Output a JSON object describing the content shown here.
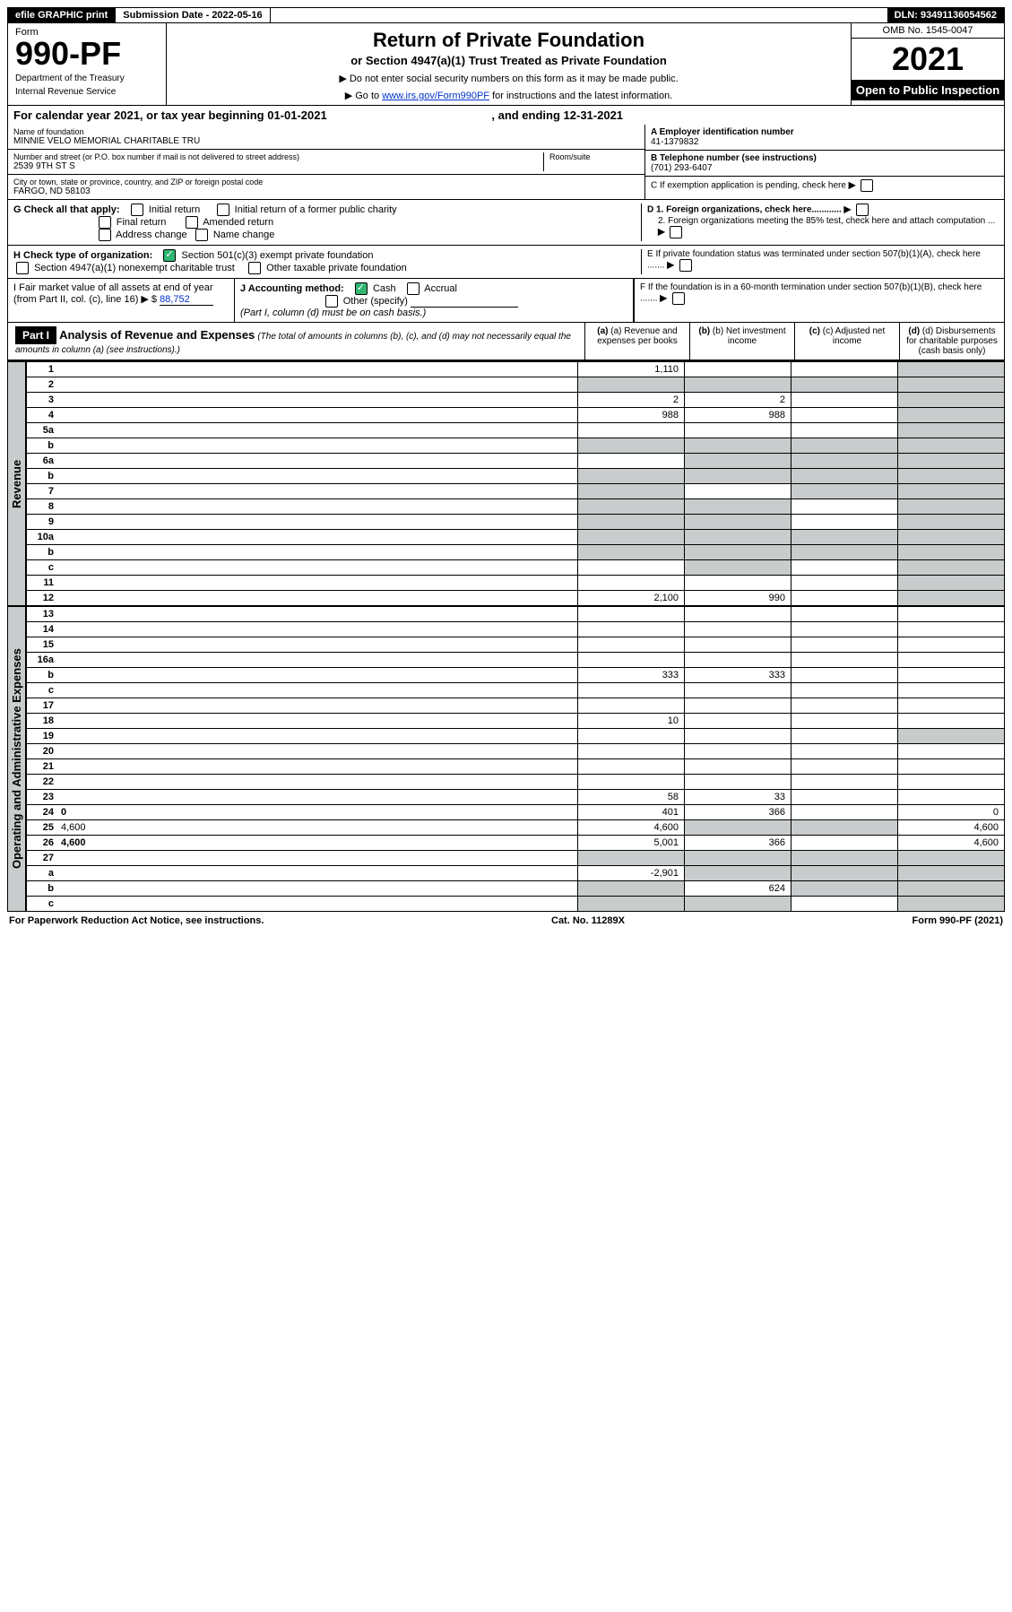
{
  "header": {
    "efile": "efile GRAPHIC print",
    "submission_label": "Submission Date - 2022-05-16",
    "dln": "DLN: 93491136054562"
  },
  "form": {
    "form_label": "Form",
    "number": "990-PF",
    "dept": "Department of the Treasury",
    "irs": "Internal Revenue Service",
    "title": "Return of Private Foundation",
    "subtitle": "or Section 4947(a)(1) Trust Treated as Private Foundation",
    "instr1": "▶ Do not enter social security numbers on this form as it may be made public.",
    "instr2_pre": "▶ Go to ",
    "instr2_link": "www.irs.gov/Form990PF",
    "instr2_post": " for instructions and the latest information.",
    "omb": "OMB No. 1545-0047",
    "year": "2021",
    "open": "Open to Public Inspection"
  },
  "cal": "For calendar year 2021, or tax year beginning 01-01-2021",
  "cal_end_lbl": ", and ending ",
  "cal_end": "12-31-2021",
  "foundation": {
    "name_lbl": "Name of foundation",
    "name": "MINNIE VELO MEMORIAL CHARITABLE TRU",
    "addr_lbl": "Number and street (or P.O. box number if mail is not delivered to street address)",
    "addr": "2539 9TH ST S",
    "room_lbl": "Room/suite",
    "room": "",
    "city_lbl": "City or town, state or province, country, and ZIP or foreign postal code",
    "city": "FARGO, ND  58103"
  },
  "right_info": {
    "a_lbl": "A Employer identification number",
    "a_val": "41-1379832",
    "b_lbl": "B Telephone number (see instructions)",
    "b_val": "(701) 293-6407",
    "c_lbl": "C If exemption application is pending, check here",
    "d1_lbl": "D 1. Foreign organizations, check here............",
    "d2_lbl": "2. Foreign organizations meeting the 85% test, check here and attach computation ...",
    "e_lbl": "E If private foundation status was terminated under section 507(b)(1)(A), check here .......",
    "f_lbl": "F If the foundation is in a 60-month termination under section 507(b)(1)(B), check here ......."
  },
  "g": {
    "label": "G Check all that apply:",
    "opts": [
      "Initial return",
      "Final return",
      "Address change",
      "Initial return of a former public charity",
      "Amended return",
      "Name change"
    ]
  },
  "h": {
    "label": "H Check type of organization:",
    "opt1": "Section 501(c)(3) exempt private foundation",
    "opt2": "Section 4947(a)(1) nonexempt charitable trust",
    "opt3": "Other taxable private foundation"
  },
  "i": {
    "label": "I Fair market value of all assets at end of year (from Part II, col. (c), line 16) ▶ $",
    "val": "88,752"
  },
  "j": {
    "label": "J Accounting method:",
    "cash": "Cash",
    "accrual": "Accrual",
    "other": "Other (specify)",
    "note": "(Part I, column (d) must be on cash basis.)"
  },
  "part1": {
    "label": "Part I",
    "title": "Analysis of Revenue and Expenses",
    "sub": "(The total of amounts in columns (b), (c), and (d) may not necessarily equal the amounts in column (a) (see instructions).)",
    "col_a": "(a) Revenue and expenses per books",
    "col_b": "(b) Net investment income",
    "col_c": "(c) Adjusted net income",
    "col_d": "(d) Disbursements for charitable purposes (cash basis only)"
  },
  "revenue_label": "Revenue",
  "expenses_label": "Operating and Administrative Expenses",
  "rows_rev": [
    {
      "n": "1",
      "d": "",
      "a": "1,110",
      "b": "",
      "c": "",
      "bg": false,
      "gd": true
    },
    {
      "n": "2",
      "d": "",
      "a": "",
      "b": "",
      "c": "",
      "ga": true,
      "gb": true,
      "gc": true,
      "gd": true
    },
    {
      "n": "3",
      "d": "",
      "a": "2",
      "b": "2",
      "c": "",
      "gd": true
    },
    {
      "n": "4",
      "d": "",
      "a": "988",
      "b": "988",
      "c": "",
      "gd": true
    },
    {
      "n": "5a",
      "d": "",
      "a": "",
      "b": "",
      "c": "",
      "gd": true
    },
    {
      "n": "b",
      "d": "",
      "a": "",
      "b": "",
      "c": "",
      "ga": true,
      "gb": true,
      "gc": true,
      "gd": true
    },
    {
      "n": "6a",
      "d": "",
      "a": "",
      "b": "",
      "c": "",
      "gb": true,
      "gc": true,
      "gd": true
    },
    {
      "n": "b",
      "d": "",
      "a": "",
      "b": "",
      "c": "",
      "ga": true,
      "gb": true,
      "gc": true,
      "gd": true
    },
    {
      "n": "7",
      "d": "",
      "a": "",
      "b": "",
      "c": "",
      "ga": true,
      "gc": true,
      "gd": true
    },
    {
      "n": "8",
      "d": "",
      "a": "",
      "b": "",
      "c": "",
      "ga": true,
      "gb": true,
      "gd": true
    },
    {
      "n": "9",
      "d": "",
      "a": "",
      "b": "",
      "c": "",
      "ga": true,
      "gb": true,
      "gd": true
    },
    {
      "n": "10a",
      "d": "",
      "a": "",
      "b": "",
      "c": "",
      "ga": true,
      "gb": true,
      "gc": true,
      "gd": true
    },
    {
      "n": "b",
      "d": "",
      "a": "",
      "b": "",
      "c": "",
      "ga": true,
      "gb": true,
      "gc": true,
      "gd": true
    },
    {
      "n": "c",
      "d": "",
      "a": "",
      "b": "",
      "c": "",
      "gb": true,
      "gd": true
    },
    {
      "n": "11",
      "d": "",
      "a": "",
      "b": "",
      "c": "",
      "gd": true
    },
    {
      "n": "12",
      "d": "",
      "a": "2,100",
      "b": "990",
      "c": "",
      "bold": true,
      "gd": true
    }
  ],
  "rows_exp": [
    {
      "n": "13",
      "d": "",
      "a": "",
      "b": "",
      "c": ""
    },
    {
      "n": "14",
      "d": "",
      "a": "",
      "b": "",
      "c": ""
    },
    {
      "n": "15",
      "d": "",
      "a": "",
      "b": "",
      "c": ""
    },
    {
      "n": "16a",
      "d": "",
      "a": "",
      "b": "",
      "c": ""
    },
    {
      "n": "b",
      "d": "",
      "a": "333",
      "b": "333",
      "c": ""
    },
    {
      "n": "c",
      "d": "",
      "a": "",
      "b": "",
      "c": ""
    },
    {
      "n": "17",
      "d": "",
      "a": "",
      "b": "",
      "c": ""
    },
    {
      "n": "18",
      "d": "",
      "a": "10",
      "b": "",
      "c": ""
    },
    {
      "n": "19",
      "d": "",
      "a": "",
      "b": "",
      "c": "",
      "gd": true
    },
    {
      "n": "20",
      "d": "",
      "a": "",
      "b": "",
      "c": ""
    },
    {
      "n": "21",
      "d": "",
      "a": "",
      "b": "",
      "c": ""
    },
    {
      "n": "22",
      "d": "",
      "a": "",
      "b": "",
      "c": ""
    },
    {
      "n": "23",
      "d": "",
      "a": "58",
      "b": "33",
      "c": ""
    },
    {
      "n": "24",
      "d": "0",
      "a": "401",
      "b": "366",
      "c": "",
      "bold": true
    },
    {
      "n": "25",
      "d": "4,600",
      "a": "4,600",
      "b": "",
      "c": "",
      "gb": true,
      "gc": true
    },
    {
      "n": "26",
      "d": "4,600",
      "a": "5,001",
      "b": "366",
      "c": "",
      "bold": true
    },
    {
      "n": "27",
      "d": "",
      "a": "",
      "b": "",
      "c": "",
      "ga": true,
      "gb": true,
      "gc": true,
      "gd": true
    },
    {
      "n": "a",
      "d": "",
      "a": "-2,901",
      "b": "",
      "c": "",
      "bold": true,
      "gb": true,
      "gc": true,
      "gd": true
    },
    {
      "n": "b",
      "d": "",
      "a": "",
      "b": "624",
      "c": "",
      "bold": true,
      "ga": true,
      "gc": true,
      "gd": true
    },
    {
      "n": "c",
      "d": "",
      "a": "",
      "b": "",
      "c": "",
      "bold": true,
      "ga": true,
      "gb": true,
      "gd": true
    }
  ],
  "footer": {
    "left": "For Paperwork Reduction Act Notice, see instructions.",
    "mid": "Cat. No. 11289X",
    "right": "Form 990-PF (2021)"
  }
}
